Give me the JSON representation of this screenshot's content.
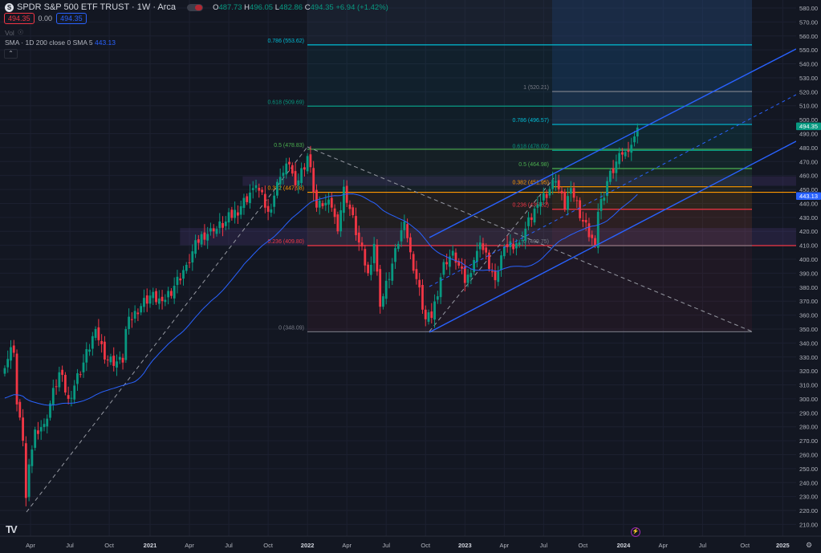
{
  "header": {
    "symbol_icon": "S",
    "title": "SPDR S&P 500 ETF TRUST · 1W · Arca",
    "open_label": "O",
    "open": "487.73",
    "high_label": "H",
    "high": "496.05",
    "low_label": "L",
    "low": "482.86",
    "close_label": "C",
    "close": "494.35",
    "change": "+6.94 (+1.42%)",
    "sell_price": "494.35",
    "spread": "0.00",
    "buy_price": "494.35",
    "vol_label": "Vol",
    "sma_label": "SMA · 1D 200 close 0 SMA 5",
    "sma_value": "443.13",
    "collapse_icon": "chevron-up-icon"
  },
  "colors": {
    "up": "#089981",
    "down": "#f23645",
    "sma": "#2962ff",
    "channel": "#2962ff",
    "zone": "#7e57c2"
  },
  "chart_data": {
    "type": "candlestick",
    "title": "SPDR S&P 500 ETF TRUST · 1W · Arca",
    "ylim": [
      200,
      585
    ],
    "y_ticks": [
      "580.00",
      "570.00",
      "560.00",
      "550.00",
      "540.00",
      "530.00",
      "520.00",
      "510.00",
      "500.00",
      "490.00",
      "480.00",
      "470.00",
      "460.00",
      "450.00",
      "440.00",
      "430.00",
      "420.00",
      "410.00",
      "400.00",
      "390.00",
      "380.00",
      "370.00",
      "360.00",
      "350.00",
      "340.00",
      "330.00",
      "320.00",
      "310.00",
      "300.00",
      "290.00",
      "280.00",
      "270.00",
      "260.00",
      "250.00",
      "240.00",
      "230.00",
      "220.00",
      "210.00"
    ],
    "x_ticks": [
      {
        "label": "Apr",
        "week": 8.5,
        "bold": false
      },
      {
        "label": "Jul",
        "week": 21.5,
        "bold": false
      },
      {
        "label": "Oct",
        "week": 34.5,
        "bold": false
      },
      {
        "label": "2021",
        "week": 48,
        "bold": true
      },
      {
        "label": "Apr",
        "week": 61,
        "bold": false
      },
      {
        "label": "Jul",
        "week": 74,
        "bold": false
      },
      {
        "label": "Oct",
        "week": 87,
        "bold": false
      },
      {
        "label": "2022",
        "week": 100,
        "bold": true
      },
      {
        "label": "Apr",
        "week": 113,
        "bold": false
      },
      {
        "label": "Jul",
        "week": 126,
        "bold": false
      },
      {
        "label": "Oct",
        "week": 139,
        "bold": false
      },
      {
        "label": "2023",
        "week": 152,
        "bold": true
      },
      {
        "label": "Apr",
        "week": 165,
        "bold": false
      },
      {
        "label": "Jul",
        "week": 178,
        "bold": false
      },
      {
        "label": "Oct",
        "week": 191,
        "bold": false
      },
      {
        "label": "2024",
        "week": 204.4,
        "bold": true
      },
      {
        "label": "Apr",
        "week": 217.5,
        "bold": false
      },
      {
        "label": "Jul",
        "week": 230.5,
        "bold": false
      },
      {
        "label": "Oct",
        "week": 244.5,
        "bold": false
      },
      {
        "label": "2025",
        "week": 257,
        "bold": true
      }
    ],
    "week_zero": "2020-01-31",
    "close_anchors": [
      [
        0,
        322
      ],
      [
        2,
        337
      ],
      [
        3,
        333
      ],
      [
        4,
        296
      ],
      [
        6,
        270
      ],
      [
        7,
        229
      ],
      [
        8,
        253
      ],
      [
        10,
        278
      ],
      [
        13,
        282
      ],
      [
        18,
        319
      ],
      [
        21,
        300
      ],
      [
        26,
        326
      ],
      [
        30,
        350
      ],
      [
        31,
        342
      ],
      [
        34,
        328
      ],
      [
        39,
        326
      ],
      [
        40,
        350
      ],
      [
        43,
        363
      ],
      [
        48,
        374
      ],
      [
        52,
        370
      ],
      [
        56,
        381
      ],
      [
        60,
        396
      ],
      [
        65,
        418
      ],
      [
        69,
        420
      ],
      [
        73,
        427
      ],
      [
        78,
        438
      ],
      [
        82,
        451
      ],
      [
        83,
        453
      ],
      [
        87,
        434
      ],
      [
        91,
        459
      ],
      [
        94,
        468
      ],
      [
        96,
        453
      ],
      [
        100,
        474
      ],
      [
        101,
        466
      ],
      [
        103,
        437
      ],
      [
        104,
        442
      ],
      [
        108,
        437
      ],
      [
        110,
        420
      ],
      [
        112,
        452
      ],
      [
        117,
        412
      ],
      [
        120,
        390
      ],
      [
        122,
        411
      ],
      [
        124,
        366
      ],
      [
        130,
        411
      ],
      [
        132,
        427
      ],
      [
        134,
        405
      ],
      [
        139,
        357
      ],
      [
        141,
        358
      ],
      [
        145,
        398
      ],
      [
        147,
        402
      ],
      [
        148,
        406
      ],
      [
        152,
        383
      ],
      [
        153,
        389
      ],
      [
        156,
        406
      ],
      [
        157,
        412
      ],
      [
        162,
        385
      ],
      [
        165,
        409
      ],
      [
        170,
        412
      ],
      [
        176,
        439
      ],
      [
        182,
        456
      ],
      [
        185,
        436
      ],
      [
        187,
        451
      ],
      [
        191,
        427
      ],
      [
        195,
        410
      ],
      [
        196,
        434
      ],
      [
        199,
        456
      ],
      [
        202,
        470
      ],
      [
        204,
        475
      ],
      [
        206,
        477
      ],
      [
        207,
        482
      ],
      [
        208,
        488
      ],
      [
        209,
        494.35
      ]
    ],
    "sma_period_weeks": 40,
    "last_price": "494.35",
    "sma_last": "443.13",
    "fib_1": {
      "levels": [
        {
          "ratio": "0",
          "value": "348.09",
          "label": "0 (348.09)",
          "color": "#787b86"
        },
        {
          "ratio": "0.236",
          "value": "409.80",
          "label": "0.236 (409.80)",
          "color": "#f23645"
        },
        {
          "ratio": "0.382",
          "value": "447.98",
          "label": "0.382 (447.98)",
          "color": "#ff9800"
        },
        {
          "ratio": "0.5",
          "value": "478.83",
          "label": "0.5 (478.83)",
          "color": "#4caf50"
        },
        {
          "ratio": "0.618",
          "value": "509.69",
          "label": "0.618 (509.69)",
          "color": "#089981"
        },
        {
          "ratio": "0.786",
          "value": "553.62",
          "label": "0.786 (553.62)",
          "color": "#00bcd4"
        }
      ]
    },
    "fib_2": {
      "levels": [
        {
          "ratio": "0",
          "value": "409.75",
          "label": "0 (409.75)",
          "color": "#787b86"
        },
        {
          "ratio": "0.236",
          "value": "435.82",
          "label": "0.236 (435.82)",
          "color": "#f23645"
        },
        {
          "ratio": "0.382",
          "value": "451.95",
          "label": "0.382 (451.95)",
          "color": "#ff9800"
        },
        {
          "ratio": "0.5",
          "value": "464.98",
          "label": "0.5 (464.98)",
          "color": "#4caf50"
        },
        {
          "ratio": "0.618",
          "value": "478.02",
          "label": "0.618 (478.02)",
          "color": "#089981"
        },
        {
          "ratio": "0.786",
          "value": "496.57",
          "label": "0.786 (496.57)",
          "color": "#00bcd4"
        },
        {
          "ratio": "1",
          "value": "520.21",
          "label": "1 (520.21)",
          "color": "#787b86"
        }
      ]
    },
    "zones": [
      {
        "top": 459,
        "bottom": 453
      },
      {
        "top": 422,
        "bottom": 410.5
      }
    ]
  },
  "footer": {
    "logo": "TV",
    "alert_icon": "lightning-icon",
    "settings_icon": "gear-icon"
  }
}
